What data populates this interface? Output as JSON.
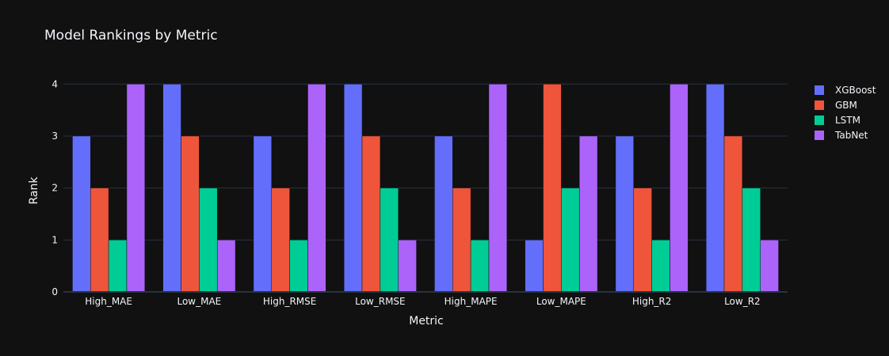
{
  "chart_data": {
    "type": "bar",
    "title": "Model Rankings by Metric",
    "xlabel": "Metric",
    "ylabel": "Rank",
    "categories": [
      "High_MAE",
      "Low_MAE",
      "High_RMSE",
      "Low_RMSE",
      "High_MAPE",
      "Low_MAPE",
      "High_R2",
      "Low_R2"
    ],
    "series": [
      {
        "name": "XGBoost",
        "color": "#636efa",
        "values": [
          3,
          4,
          3,
          4,
          3,
          1,
          3,
          4
        ]
      },
      {
        "name": "GBM",
        "color": "#ef553b",
        "values": [
          2,
          3,
          2,
          3,
          2,
          4,
          2,
          3
        ]
      },
      {
        "name": "LSTM",
        "color": "#00cc96",
        "values": [
          1,
          2,
          1,
          2,
          1,
          2,
          1,
          2
        ]
      },
      {
        "name": "TabNet",
        "color": "#ab63fa",
        "values": [
          4,
          1,
          4,
          1,
          4,
          3,
          4,
          1
        ]
      }
    ],
    "ylim": [
      0,
      4.4
    ],
    "yticks": [
      0,
      1,
      2,
      3,
      4
    ],
    "grid": true,
    "legend_position": "top-right",
    "theme": {
      "background": "#111111",
      "grid_color": "#283442",
      "text_color": "#f2f5fa"
    }
  }
}
